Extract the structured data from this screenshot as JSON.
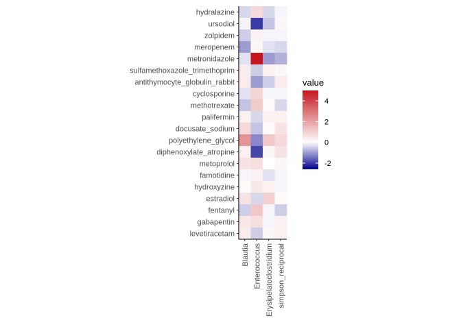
{
  "chart_data": {
    "type": "heatmap",
    "rows": [
      "hydralazine",
      "ursodiol",
      "zolpidem",
      "meropenem",
      "metronidazole",
      "sulfamethoxazole_trimethoprim",
      "antithymocyte_globulin_rabbit",
      "cyclosporine",
      "methotrexate",
      "palifermin",
      "docusate_sodium",
      "polyethylene_glycol",
      "diphenoxylate_atropine",
      "metoprolol",
      "famotidine",
      "hydroxyzine",
      "estradiol",
      "fentanyl",
      "gabapentin",
      "levetiracetam"
    ],
    "columns": [
      "Blautia",
      "Enterococcus",
      "Erysipelatoclostridium",
      "simpson_reciprocal"
    ],
    "values": [
      [
        -0.4,
        0.8,
        -0.4,
        -0.1
      ],
      [
        -0.1,
        -2.0,
        -0.6,
        0.2
      ],
      [
        -0.5,
        0.3,
        -0.1,
        -0.1
      ],
      [
        -1.0,
        0.2,
        -0.3,
        -0.4
      ],
      [
        -0.3,
        5.0,
        -1.0,
        -0.8
      ],
      [
        0.4,
        -0.5,
        0.3,
        0.2
      ],
      [
        0.4,
        -1.0,
        -0.5,
        0.4
      ],
      [
        -0.3,
        0.9,
        -0.1,
        -0.1
      ],
      [
        -0.6,
        1.1,
        0.1,
        -0.4
      ],
      [
        0.3,
        -0.4,
        0.3,
        0.3
      ],
      [
        0.8,
        -0.6,
        0.1,
        0.6
      ],
      [
        2.3,
        -1.2,
        1.2,
        0.8
      ],
      [
        0.3,
        -1.9,
        0.2,
        0.6
      ],
      [
        0.6,
        0.7,
        0.0,
        0.2
      ],
      [
        -0.1,
        0.3,
        -0.3,
        -0.1
      ],
      [
        0.1,
        0.5,
        0.3,
        -0.1
      ],
      [
        0.6,
        -0.4,
        1.0,
        0.1
      ],
      [
        -0.5,
        1.2,
        -0.1,
        -0.5
      ],
      [
        0.5,
        0.7,
        -0.1,
        0.3
      ],
      [
        0.4,
        -0.5,
        0.2,
        0.3
      ]
    ],
    "legend": {
      "title": "value",
      "breaks": [
        4,
        2,
        0,
        -2
      ],
      "labels": [
        "4",
        "2",
        "0",
        "-2"
      ],
      "limits": [
        -2.6,
        5.0
      ]
    },
    "scale": {
      "low": "#00008b",
      "mid": "#ffffff",
      "high": "#c4161c"
    },
    "grid": false
  }
}
